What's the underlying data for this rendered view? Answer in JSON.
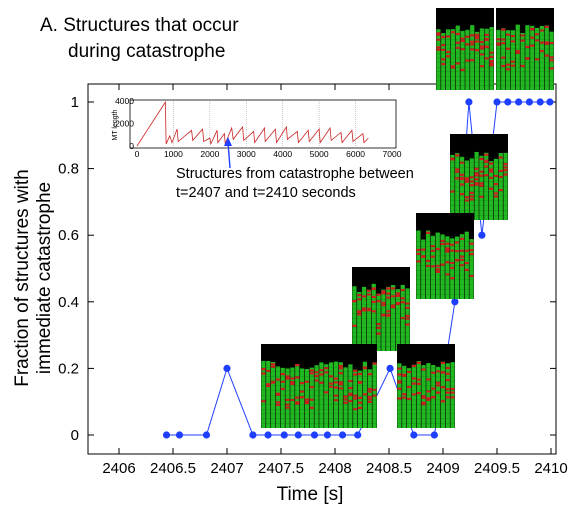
{
  "chart_data": {
    "type": "scatter",
    "title": "A. Structures that occur during catastrophe",
    "title_lines": [
      "A. Structures that occur",
      "during catastrophe"
    ],
    "xlabel": "Time [s]",
    "ylabel": "Fraction of structures with immediate catastrophe",
    "ylabel_lines": [
      "Fraction of structures with",
      "immediate catastrophe"
    ],
    "xlim": [
      2406,
      2410
    ],
    "ylim": [
      0,
      1
    ],
    "x_ticks": [
      2406,
      2406.5,
      2407,
      2407.5,
      2408,
      2408.5,
      2409,
      2409.5,
      2410
    ],
    "x_tick_labels": [
      "2406",
      "2406.5",
      "2407",
      "2407.5",
      "2408",
      "2408.5",
      "2409",
      "2409.5",
      "2410"
    ],
    "y_ticks": [
      0,
      0.2,
      0.4,
      0.6,
      0.8,
      1
    ],
    "y_tick_labels": [
      "0",
      "0.2",
      "0.4",
      "0.6",
      "0.8",
      "1"
    ],
    "grid": false,
    "series": [
      {
        "color": "#1f3fff",
        "x": [
          2406.44,
          2406.56,
          2406.81,
          2407.0,
          2407.24,
          2407.38,
          2407.53,
          2407.66,
          2407.81,
          2407.93,
          2408.07,
          2408.21,
          2408.51,
          2408.73,
          2408.92,
          2409.11,
          2409.24,
          2409.36,
          2409.5,
          2409.6,
          2409.7,
          2409.8,
          2409.9,
          2409.99
        ],
        "y": [
          0,
          0,
          0,
          0.2,
          0,
          0,
          0,
          0,
          0,
          0,
          0,
          0,
          0.2,
          0,
          0,
          0.4,
          1.0,
          0.6,
          1.0,
          1.0,
          1.0,
          1.0,
          1.0,
          1.0
        ]
      }
    ],
    "inset": {
      "type": "line",
      "ylabel": "MT length",
      "xlim": [
        0,
        7000
      ],
      "ylim": [
        0,
        4000
      ],
      "x_ticks": [
        0,
        1000,
        2000,
        3000,
        4000,
        5000,
        6000,
        7000
      ],
      "x_tick_labels": [
        "0",
        "1000",
        "2000",
        "3000",
        "4000",
        "5000",
        "6000",
        "7000"
      ],
      "y_ticks": [
        0,
        2000,
        4000
      ],
      "y_tick_labels": [
        "0",
        "2000",
        "4000"
      ],
      "color": "#cc2222"
    },
    "annotation": {
      "text": "Structures from catastrophe between t=2407 and t=2410 seconds",
      "lines": [
        "Structures from catastrophe between",
        "t=2407 and t=2410 seconds"
      ]
    }
  },
  "colors": {
    "series": "#1f3fff",
    "inset_line": "#cc2222",
    "thumb_bg": "#000000",
    "thumb_green": "#22b822",
    "thumb_red": "#cc2020"
  }
}
